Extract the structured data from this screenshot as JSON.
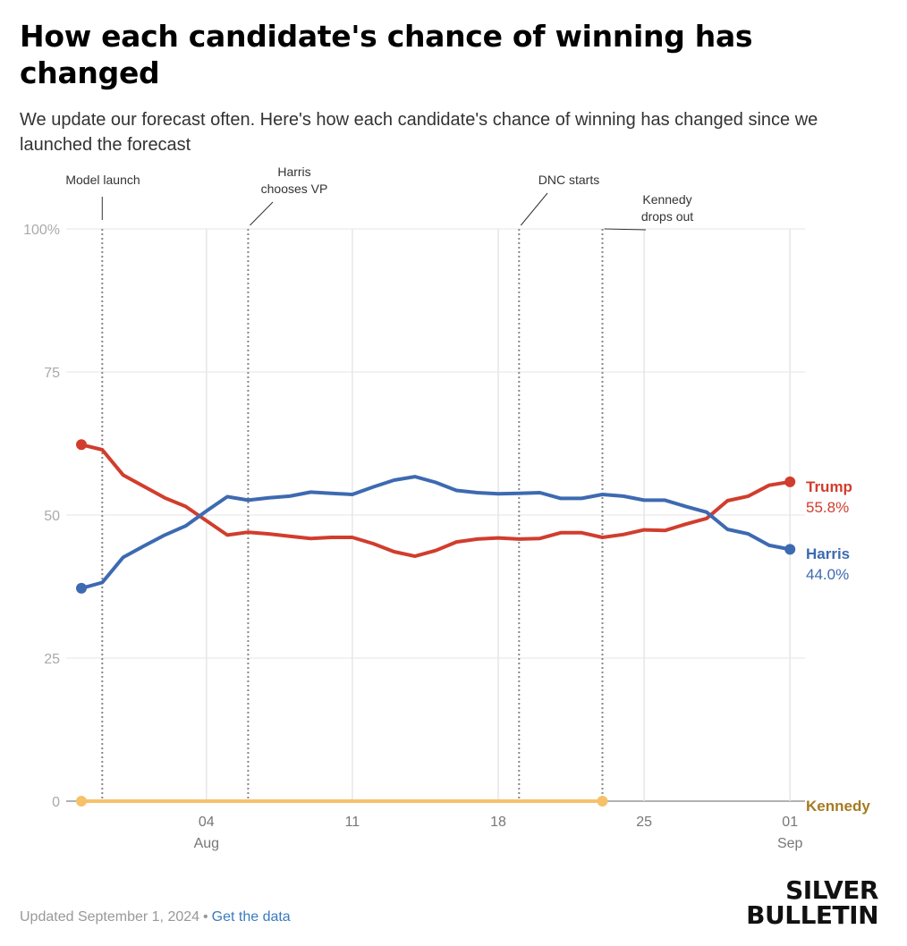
{
  "title": "How each candidate's chance of winning has changed",
  "subtitle": "We update our forecast often. Here's how each candidate's chance of winning has changed since we launched the forecast",
  "footer": {
    "updated": "Updated September 1, 2024",
    "link": "Get the data"
  },
  "logo": {
    "line1": "SILVER",
    "line2": "BULLETIN"
  },
  "chart_data": {
    "type": "line",
    "x_start": "2024-07-29",
    "y_ticks": [
      "100%",
      "75",
      "50",
      "25",
      "0"
    ],
    "y_tick_values": [
      100,
      75,
      50,
      25,
      0
    ],
    "ylim": [
      0,
      100
    ],
    "x_ticks": [
      {
        "date": "2024-08-04",
        "label": "04",
        "sub": "Aug"
      },
      {
        "date": "2024-08-11",
        "label": "11",
        "sub": ""
      },
      {
        "date": "2024-08-18",
        "label": "18",
        "sub": ""
      },
      {
        "date": "2024-08-25",
        "label": "25",
        "sub": ""
      },
      {
        "date": "2024-09-01",
        "label": "01",
        "sub": "Sep"
      }
    ],
    "annotations": [
      {
        "date": "2024-07-30",
        "lines": [
          "Model launch"
        ],
        "style": "straight"
      },
      {
        "date": "2024-08-06",
        "lines": [
          "Harris",
          "chooses VP"
        ],
        "style": "leader"
      },
      {
        "date": "2024-08-19",
        "lines": [
          "DNC starts"
        ],
        "style": "leader"
      },
      {
        "date": "2024-08-23",
        "lines": [
          "Kennedy",
          "drops out"
        ],
        "style": "leader"
      }
    ],
    "series": [
      {
        "name": "Trump",
        "color": "#d13d2d",
        "end_label": "55.8%",
        "dates": [
          "2024-07-29",
          "2024-07-30",
          "2024-07-31",
          "2024-08-01",
          "2024-08-02",
          "2024-08-03",
          "2024-08-04",
          "2024-08-05",
          "2024-08-06",
          "2024-08-07",
          "2024-08-08",
          "2024-08-09",
          "2024-08-10",
          "2024-08-11",
          "2024-08-12",
          "2024-08-13",
          "2024-08-14",
          "2024-08-15",
          "2024-08-16",
          "2024-08-17",
          "2024-08-18",
          "2024-08-19",
          "2024-08-20",
          "2024-08-21",
          "2024-08-22",
          "2024-08-23",
          "2024-08-24",
          "2024-08-25",
          "2024-08-26",
          "2024-08-27",
          "2024-08-28",
          "2024-08-29",
          "2024-08-30",
          "2024-08-31",
          "2024-09-01"
        ],
        "values": [
          62.3,
          61.4,
          57.0,
          55.0,
          53.0,
          51.5,
          49.0,
          46.5,
          47.0,
          46.7,
          46.3,
          45.9,
          46.1,
          46.1,
          45.0,
          43.6,
          42.8,
          43.8,
          45.3,
          45.8,
          46.0,
          45.8,
          45.9,
          46.9,
          46.9,
          46.1,
          46.6,
          47.4,
          47.3,
          48.4,
          49.4,
          52.5,
          53.3,
          55.2,
          55.8
        ]
      },
      {
        "name": "Harris",
        "color": "#3d6ab1",
        "end_label": "44.0%",
        "dates": [
          "2024-07-29",
          "2024-07-30",
          "2024-07-31",
          "2024-08-01",
          "2024-08-02",
          "2024-08-03",
          "2024-08-04",
          "2024-08-05",
          "2024-08-06",
          "2024-08-07",
          "2024-08-08",
          "2024-08-09",
          "2024-08-10",
          "2024-08-11",
          "2024-08-12",
          "2024-08-13",
          "2024-08-14",
          "2024-08-15",
          "2024-08-16",
          "2024-08-17",
          "2024-08-18",
          "2024-08-19",
          "2024-08-20",
          "2024-08-21",
          "2024-08-22",
          "2024-08-23",
          "2024-08-24",
          "2024-08-25",
          "2024-08-26",
          "2024-08-27",
          "2024-08-28",
          "2024-08-29",
          "2024-08-30",
          "2024-08-31",
          "2024-09-01"
        ],
        "values": [
          37.2,
          38.2,
          42.6,
          44.6,
          46.5,
          48.1,
          50.7,
          53.2,
          52.6,
          53.0,
          53.3,
          54.0,
          53.8,
          53.6,
          54.9,
          56.1,
          56.7,
          55.7,
          54.3,
          53.9,
          53.7,
          53.8,
          53.9,
          52.9,
          52.9,
          53.6,
          53.3,
          52.6,
          52.6,
          51.5,
          50.5,
          47.5,
          46.7,
          44.7,
          44.0
        ]
      },
      {
        "name": "Kennedy",
        "color": "#f5c26b",
        "label_color": "#a57b22",
        "end_label": "",
        "dates": [
          "2024-07-29",
          "2024-08-23"
        ],
        "values": [
          0,
          0
        ]
      }
    ]
  }
}
